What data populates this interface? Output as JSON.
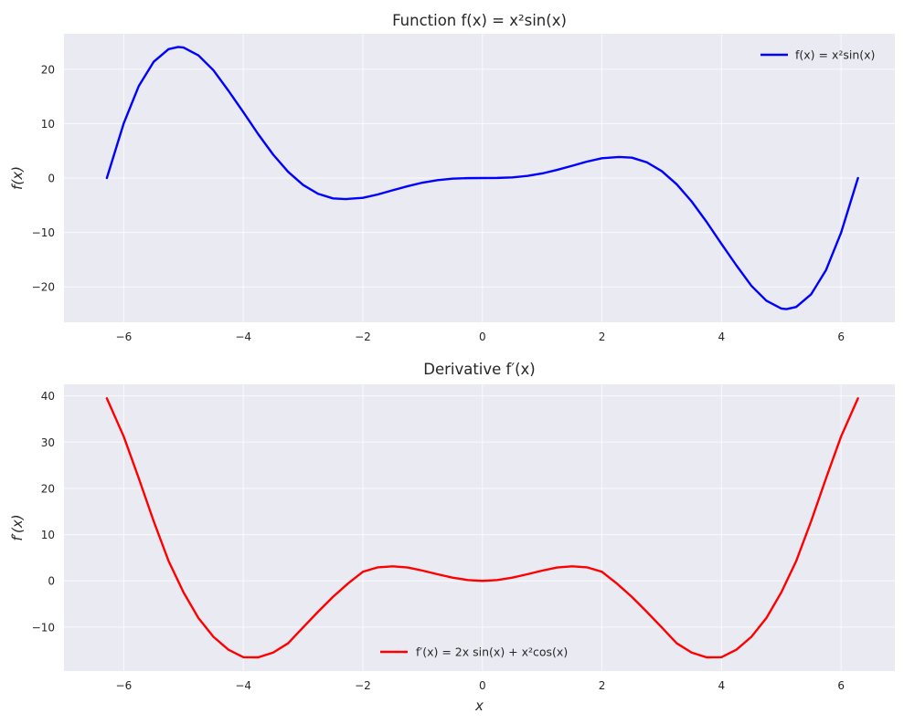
{
  "chart_data": [
    {
      "type": "line",
      "title": "Function f(x) = x²sin(x)",
      "xlabel": "",
      "ylabel": "f(x)",
      "xlim": [
        -7.0,
        6.9
      ],
      "ylim": [
        -26.5,
        26.5
      ],
      "xticks": [
        -6,
        -4,
        -2,
        0,
        2,
        4,
        6
      ],
      "xtick_labels": [
        "−6",
        "−4",
        "−2",
        "0",
        "2",
        "4",
        "6"
      ],
      "yticks": [
        -20,
        -10,
        0,
        10,
        20
      ],
      "ytick_labels": [
        "−20",
        "−10",
        "0",
        "10",
        "20"
      ],
      "grid": true,
      "legend_position": "top-right",
      "series": [
        {
          "name": "f(x) = x²sin(x)",
          "color": "#0000ff",
          "x": [
            -6.283,
            -6.0,
            -5.75,
            -5.5,
            -5.25,
            -5.087,
            -5.0,
            -4.75,
            -4.5,
            -4.25,
            -4.0,
            -3.75,
            -3.5,
            -3.25,
            -3.0,
            -2.75,
            -2.5,
            -2.289,
            -2.0,
            -1.75,
            -1.5,
            -1.25,
            -1.0,
            -0.75,
            -0.5,
            -0.25,
            0.0,
            0.25,
            0.5,
            0.75,
            1.0,
            1.25,
            1.5,
            1.75,
            2.0,
            2.289,
            2.5,
            2.75,
            3.0,
            3.25,
            3.5,
            3.75,
            4.0,
            4.25,
            4.5,
            4.75,
            5.0,
            5.087,
            5.25,
            5.5,
            5.75,
            6.0,
            6.283
          ],
          "y": [
            0.0,
            10.06,
            16.87,
            21.35,
            23.68,
            24.08,
            23.97,
            22.53,
            19.8,
            16.06,
            12.11,
            8.05,
            4.3,
            1.14,
            -1.27,
            -2.89,
            -3.74,
            -3.87,
            -3.64,
            -3.02,
            -2.24,
            -1.5,
            -0.84,
            -0.38,
            -0.12,
            -0.02,
            0.0,
            0.02,
            0.12,
            0.38,
            0.84,
            1.5,
            2.24,
            3.02,
            3.64,
            3.87,
            3.74,
            2.89,
            1.27,
            -1.14,
            -4.3,
            -8.05,
            -12.11,
            -16.06,
            -19.8,
            -22.53,
            -23.97,
            -24.08,
            -23.68,
            -21.35,
            -16.87,
            -10.06,
            0.0
          ]
        }
      ]
    },
    {
      "type": "line",
      "title": "Derivative f′(x)",
      "xlabel": "x",
      "ylabel": "f′(x)",
      "xlim": [
        -7.0,
        6.9
      ],
      "ylim": [
        -19.5,
        42.5
      ],
      "xticks": [
        -6,
        -4,
        -2,
        0,
        2,
        4,
        6
      ],
      "xtick_labels": [
        "−6",
        "−4",
        "−2",
        "0",
        "2",
        "4",
        "6"
      ],
      "yticks": [
        -10,
        0,
        10,
        20,
        30,
        40
      ],
      "ytick_labels": [
        "−10",
        "0",
        "10",
        "20",
        "30",
        "40"
      ],
      "grid": true,
      "legend_position": "bottom-center",
      "series": [
        {
          "name": "f′(x) = 2x sin(x) + x²cos(x)",
          "color": "#ff0000",
          "x": [
            -6.283,
            -6.0,
            -5.75,
            -5.5,
            -5.25,
            -5.0,
            -4.75,
            -4.5,
            -4.25,
            -4.0,
            -3.75,
            -3.5,
            -3.25,
            -3.0,
            -2.75,
            -2.5,
            -2.25,
            -2.0,
            -1.75,
            -1.5,
            -1.25,
            -1.0,
            -0.75,
            -0.5,
            -0.25,
            0.0,
            0.25,
            0.5,
            0.75,
            1.0,
            1.25,
            1.5,
            1.75,
            2.0,
            2.25,
            2.5,
            2.75,
            3.0,
            3.25,
            3.5,
            3.75,
            4.0,
            4.25,
            4.5,
            4.75,
            5.0,
            5.25,
            5.5,
            5.75,
            6.0,
            6.283
          ],
          "y": [
            39.48,
            31.21,
            22.24,
            12.93,
            4.3,
            -2.49,
            -8.04,
            -12.1,
            -14.87,
            -16.51,
            -16.54,
            -15.5,
            -13.49,
            -10.06,
            -6.69,
            -3.46,
            -0.58,
            1.97,
            2.93,
            3.15,
            2.9,
            2.22,
            1.43,
            0.7,
            0.19,
            0.0,
            0.19,
            0.7,
            1.43,
            2.22,
            2.9,
            3.15,
            2.93,
            1.97,
            -0.58,
            -3.46,
            -6.69,
            -10.06,
            -13.49,
            -15.5,
            -16.54,
            -16.51,
            -14.87,
            -12.1,
            -8.04,
            -2.49,
            4.3,
            12.93,
            22.24,
            31.21,
            39.48
          ]
        }
      ]
    }
  ]
}
